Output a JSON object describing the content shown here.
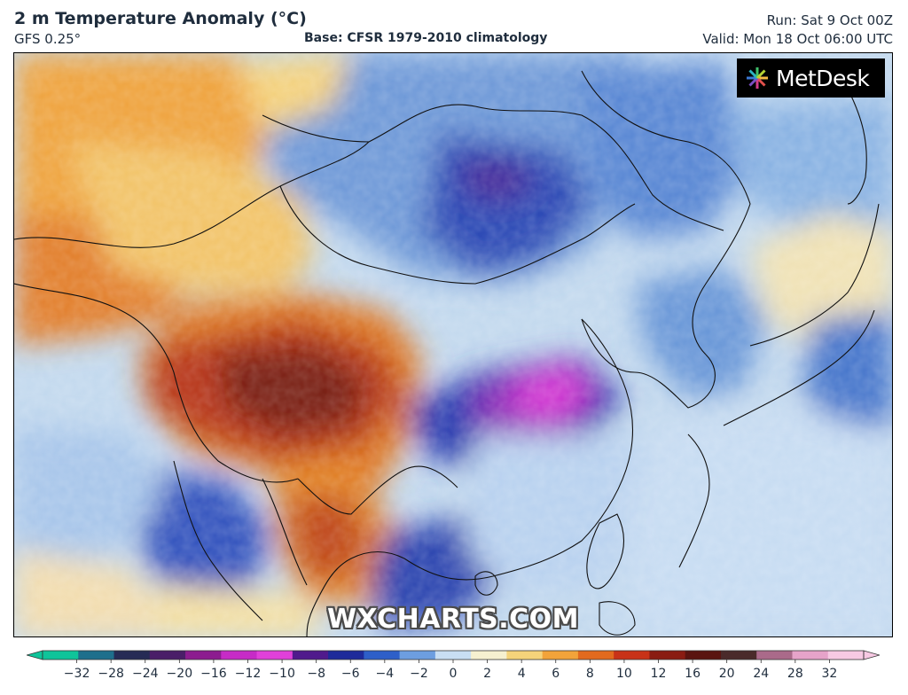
{
  "header": {
    "title": "2 m Temperature Anomaly (°C)",
    "model": "GFS 0.25°",
    "base": "Base: CFSR 1979-2010 climatology",
    "run": "Run: Sat 9 Oct 00Z",
    "valid": "Valid: Mon 18 Oct 06:00 UTC"
  },
  "brand": {
    "name": "MetDesk"
  },
  "watermark": "WXCHARTS.COM",
  "legend": {
    "ticks": [
      "−32",
      "−28",
      "−24",
      "−20",
      "−16",
      "−12",
      "−10",
      "−8",
      "−6",
      "−4",
      "−2",
      "0",
      "2",
      "4",
      "6",
      "8",
      "10",
      "12",
      "16",
      "20",
      "24",
      "28",
      "32"
    ],
    "colors": [
      "#0fc49a",
      "#1e6f8c",
      "#262b55",
      "#4a1e68",
      "#8c1c8f",
      "#c62bc6",
      "#e040d9",
      "#501a8c",
      "#1e2a9a",
      "#2e5fc8",
      "#6d9ee0",
      "#c8def3",
      "#f6f0d0",
      "#f5d37a",
      "#f2a33a",
      "#e26a1e",
      "#c83218",
      "#8a1c12",
      "#5a1410",
      "#4a2a2a",
      "#aa6a8a",
      "#e6a3c9",
      "#f7c9e3"
    ]
  },
  "map": {
    "palette": {
      "deep_magenta": "#c92fc7",
      "purple": "#5a2a9e",
      "deep_blue": "#2338a8",
      "blue": "#4a7cd0",
      "light_blue": "#a8c8ea",
      "pale": "#e6eef7",
      "pale_yellow": "#f3e4a6",
      "orange": "#eea43c",
      "dark_orange": "#d9661c",
      "red_brown": "#a82a14",
      "dark_brown": "#6e1a10"
    }
  }
}
